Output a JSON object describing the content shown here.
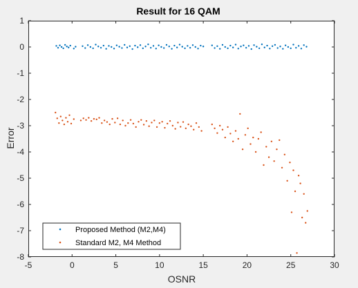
{
  "chart_data": {
    "type": "scatter",
    "title": "Result for 16 QAM",
    "xlabel": "OSNR",
    "ylabel": "Error",
    "xlim": [
      -5,
      30
    ],
    "ylim": [
      -8,
      1
    ],
    "xticks": [
      -5,
      0,
      5,
      10,
      15,
      20,
      25,
      30
    ],
    "yticks": [
      1,
      0,
      -1,
      -2,
      -3,
      -4,
      -5,
      -6,
      -7,
      -8
    ],
    "grid": false,
    "legend_position": "bottom-left",
    "series": [
      {
        "name": "Proposed Method (M2,M4)",
        "color": "#0072BD",
        "points": [
          [
            -1.8,
            0.04
          ],
          [
            -1.6,
            -0.03
          ],
          [
            -1.4,
            0.06
          ],
          [
            -1.2,
            0.0
          ],
          [
            -1.0,
            -0.05
          ],
          [
            -0.8,
            0.08
          ],
          [
            -0.6,
            0.02
          ],
          [
            -0.4,
            -0.02
          ],
          [
            -0.2,
            0.05
          ],
          [
            0.2,
            -0.06
          ],
          [
            0.4,
            0.01
          ],
          [
            1.2,
            0.03
          ],
          [
            1.5,
            -0.04
          ],
          [
            1.8,
            0.07
          ],
          [
            2.1,
            0.0
          ],
          [
            2.4,
            -0.05
          ],
          [
            2.7,
            0.09
          ],
          [
            3.0,
            0.02
          ],
          [
            3.3,
            -0.03
          ],
          [
            3.6,
            0.05
          ],
          [
            3.9,
            -0.07
          ],
          [
            4.2,
            0.04
          ],
          [
            4.5,
            0.0
          ],
          [
            4.8,
            -0.06
          ],
          [
            5.1,
            0.06
          ],
          [
            5.4,
            0.01
          ],
          [
            5.7,
            -0.04
          ],
          [
            6.0,
            0.08
          ],
          [
            6.3,
            -0.02
          ],
          [
            6.6,
            0.03
          ],
          [
            6.9,
            -0.08
          ],
          [
            7.2,
            0.05
          ],
          [
            7.5,
            -0.01
          ],
          [
            7.8,
            0.07
          ],
          [
            8.1,
            -0.05
          ],
          [
            8.4,
            0.02
          ],
          [
            8.7,
            0.1
          ],
          [
            9.0,
            -0.03
          ],
          [
            9.3,
            0.04
          ],
          [
            9.6,
            -0.06
          ],
          [
            9.9,
            0.06
          ],
          [
            10.2,
            0.0
          ],
          [
            10.5,
            -0.04
          ],
          [
            10.8,
            0.08
          ],
          [
            11.1,
            0.02
          ],
          [
            11.4,
            -0.07
          ],
          [
            11.7,
            0.05
          ],
          [
            12.0,
            -0.02
          ],
          [
            12.3,
            0.09
          ],
          [
            12.6,
            0.01
          ],
          [
            12.9,
            -0.05
          ],
          [
            13.2,
            0.04
          ],
          [
            13.5,
            -0.03
          ],
          [
            13.8,
            0.07
          ],
          [
            14.1,
            0.0
          ],
          [
            14.4,
            -0.06
          ],
          [
            14.7,
            0.05
          ],
          [
            15.0,
            0.02
          ],
          [
            16.0,
            0.06
          ],
          [
            16.3,
            -0.04
          ],
          [
            16.6,
            0.03
          ],
          [
            16.9,
            -0.07
          ],
          [
            17.2,
            0.08
          ],
          [
            17.5,
            0.0
          ],
          [
            17.8,
            -0.05
          ],
          [
            18.1,
            0.05
          ],
          [
            18.4,
            -0.02
          ],
          [
            18.7,
            0.09
          ],
          [
            19.0,
            -0.06
          ],
          [
            19.3,
            0.02
          ],
          [
            19.6,
            0.06
          ],
          [
            19.9,
            -0.03
          ],
          [
            20.2,
            0.04
          ],
          [
            20.5,
            -0.08
          ],
          [
            20.8,
            0.07
          ],
          [
            21.1,
            0.01
          ],
          [
            21.4,
            -0.05
          ],
          [
            21.7,
            0.1
          ],
          [
            22.0,
            -0.02
          ],
          [
            22.3,
            0.05
          ],
          [
            22.6,
            -0.06
          ],
          [
            22.9,
            0.03
          ],
          [
            23.2,
            0.08
          ],
          [
            23.5,
            -0.04
          ],
          [
            23.8,
            0.02
          ],
          [
            24.1,
            -0.07
          ],
          [
            24.4,
            0.06
          ],
          [
            24.7,
            0.0
          ],
          [
            25.0,
            -0.05
          ],
          [
            25.3,
            0.09
          ],
          [
            25.6,
            -0.03
          ],
          [
            25.9,
            0.04
          ],
          [
            26.2,
            -0.06
          ],
          [
            26.5,
            0.07
          ],
          [
            26.8,
            0.01
          ]
        ]
      },
      {
        "name": "Standard M2, M4 Method",
        "color": "#D95319",
        "points": [
          [
            -1.9,
            -2.5
          ],
          [
            -1.7,
            -2.72
          ],
          [
            -1.5,
            -2.9
          ],
          [
            -1.3,
            -2.65
          ],
          [
            -1.1,
            -2.8
          ],
          [
            -0.9,
            -2.95
          ],
          [
            -0.7,
            -2.7
          ],
          [
            -0.5,
            -2.85
          ],
          [
            -0.3,
            -2.6
          ],
          [
            -0.1,
            -2.92
          ],
          [
            0.2,
            -2.75
          ],
          [
            1.0,
            -2.8
          ],
          [
            1.3,
            -2.72
          ],
          [
            1.6,
            -2.78
          ],
          [
            1.9,
            -2.7
          ],
          [
            2.2,
            -2.82
          ],
          [
            2.5,
            -2.74
          ],
          [
            2.8,
            -2.76
          ],
          [
            3.1,
            -2.7
          ],
          [
            3.4,
            -2.9
          ],
          [
            3.7,
            -2.8
          ],
          [
            4.0,
            -2.86
          ],
          [
            4.3,
            -2.95
          ],
          [
            4.6,
            -2.74
          ],
          [
            4.9,
            -2.88
          ],
          [
            5.2,
            -2.72
          ],
          [
            5.5,
            -2.95
          ],
          [
            5.8,
            -2.8
          ],
          [
            6.1,
            -3.0
          ],
          [
            6.4,
            -2.9
          ],
          [
            6.7,
            -2.78
          ],
          [
            7.0,
            -2.92
          ],
          [
            7.3,
            -3.05
          ],
          [
            7.6,
            -2.85
          ],
          [
            7.9,
            -2.78
          ],
          [
            8.2,
            -2.96
          ],
          [
            8.5,
            -2.82
          ],
          [
            8.8,
            -3.02
          ],
          [
            9.1,
            -2.88
          ],
          [
            9.4,
            -2.8
          ],
          [
            9.7,
            -3.05
          ],
          [
            10.0,
            -2.9
          ],
          [
            10.3,
            -2.85
          ],
          [
            10.6,
            -3.08
          ],
          [
            10.9,
            -2.92
          ],
          [
            11.2,
            -2.82
          ],
          [
            11.5,
            -3.0
          ],
          [
            11.8,
            -3.12
          ],
          [
            12.1,
            -2.88
          ],
          [
            12.4,
            -3.04
          ],
          [
            12.7,
            -2.86
          ],
          [
            13.0,
            -3.1
          ],
          [
            13.3,
            -2.95
          ],
          [
            13.6,
            -3.02
          ],
          [
            13.9,
            -3.15
          ],
          [
            14.2,
            -2.9
          ],
          [
            14.5,
            -3.05
          ],
          [
            14.8,
            -3.2
          ],
          [
            16.0,
            -2.95
          ],
          [
            16.3,
            -3.1
          ],
          [
            16.6,
            -3.28
          ],
          [
            16.9,
            -3.0
          ],
          [
            17.2,
            -3.15
          ],
          [
            17.5,
            -3.45
          ],
          [
            17.8,
            -3.05
          ],
          [
            18.1,
            -3.3
          ],
          [
            18.4,
            -3.6
          ],
          [
            18.7,
            -3.2
          ],
          [
            19.0,
            -3.5
          ],
          [
            19.2,
            -2.55
          ],
          [
            19.5,
            -3.9
          ],
          [
            19.8,
            -3.35
          ],
          [
            20.1,
            -3.1
          ],
          [
            20.4,
            -3.7
          ],
          [
            20.7,
            -3.45
          ],
          [
            21.0,
            -4.0
          ],
          [
            21.3,
            -3.5
          ],
          [
            21.6,
            -3.25
          ],
          [
            21.9,
            -4.5
          ],
          [
            22.2,
            -3.8
          ],
          [
            22.5,
            -4.2
          ],
          [
            22.8,
            -3.6
          ],
          [
            23.1,
            -4.35
          ],
          [
            23.4,
            -3.9
          ],
          [
            23.7,
            -3.55
          ],
          [
            24.0,
            -4.6
          ],
          [
            24.3,
            -4.1
          ],
          [
            24.6,
            -5.1
          ],
          [
            24.9,
            -4.4
          ],
          [
            25.1,
            -6.3
          ],
          [
            25.3,
            -4.7
          ],
          [
            25.5,
            -5.5
          ],
          [
            25.7,
            -7.85
          ],
          [
            25.9,
            -4.9
          ],
          [
            26.1,
            -5.2
          ],
          [
            26.3,
            -6.5
          ],
          [
            26.5,
            -5.6
          ],
          [
            26.7,
            -6.7
          ],
          [
            26.9,
            -6.25
          ]
        ]
      }
    ]
  }
}
